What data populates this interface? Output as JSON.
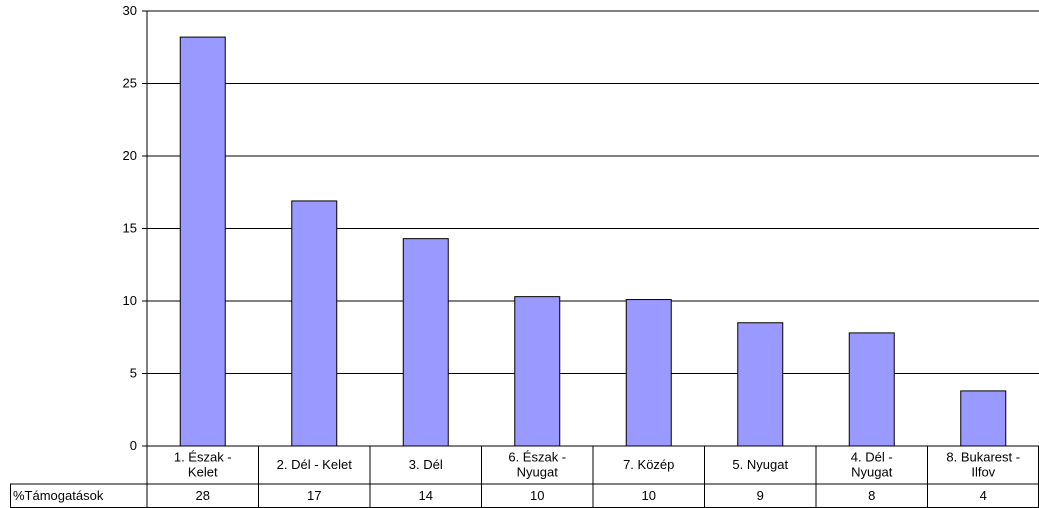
{
  "chart_data": {
    "type": "bar",
    "categories": [
      [
        "1. Észak -",
        "Kelet"
      ],
      [
        "2. Dél - Kelet"
      ],
      [
        "3. Dél"
      ],
      [
        "6. Észak -",
        "Nyugat"
      ],
      [
        "7. Közép"
      ],
      [
        "5. Nyugat"
      ],
      [
        "4. Dél -",
        "Nyugat"
      ],
      [
        "8. Bukarest -",
        "Ilfov"
      ]
    ],
    "series": [
      {
        "name": "%Támogatások",
        "values": [
          28.2,
          16.9,
          14.3,
          10.3,
          10.1,
          8.5,
          7.8,
          3.8
        ],
        "table_values": [
          "28",
          "17",
          "14",
          "10",
          "10",
          "9",
          "8",
          "4"
        ],
        "color": "#9999ff"
      }
    ],
    "yticks": [
      0,
      5,
      10,
      15,
      20,
      25,
      30
    ],
    "ylim": [
      0,
      30
    ],
    "grid": true,
    "legend": "data-table-left"
  }
}
